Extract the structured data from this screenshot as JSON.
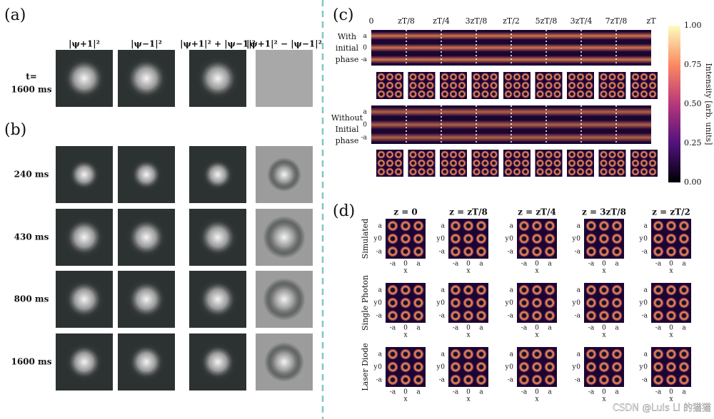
{
  "panel_a": {
    "label": "(a)",
    "headers": [
      "|ψ+1|²",
      "|ψ−1|²",
      "|ψ+1|² + |ψ−1|²",
      "|ψ+1|² − |ψ−1|²"
    ],
    "time_label": [
      "t=",
      "1600 ms"
    ]
  },
  "panel_b": {
    "label": "(b)",
    "rows": [
      "240 ms",
      "430 ms",
      "800 ms",
      "1600 ms"
    ]
  },
  "panel_c": {
    "label": "(c)",
    "positions": [
      "0",
      "zT/8",
      "zT/4",
      "3zT/8",
      "zT/2",
      "5zT/8",
      "3zT/4",
      "7zT/8",
      "zT"
    ],
    "rows": [
      [
        "With",
        "initial",
        "phase"
      ],
      [
        "Without",
        "Initial",
        "phase"
      ]
    ],
    "y_ticks": [
      "a",
      "0",
      "-a"
    ],
    "colorbar": {
      "ticks": [
        "1.00",
        "0.75",
        "0.50",
        "0.25",
        "0.00"
      ],
      "label": "Intensity [arb. units]"
    }
  },
  "panel_d": {
    "label": "(d)",
    "columns": [
      "z = 0",
      "z = zT/8",
      "z = zT/4",
      "z = 3zT/8",
      "z = zT/2"
    ],
    "rows": [
      "Simulated",
      "Single Photon",
      "Laser Diode"
    ],
    "y_ticks": [
      "a",
      "0",
      "-a"
    ],
    "x_ticks": [
      "-a",
      "0",
      "a"
    ],
    "x_label": "x",
    "y_label": "y"
  },
  "watermark": "CSDN @Luis Li 的猫猫"
}
